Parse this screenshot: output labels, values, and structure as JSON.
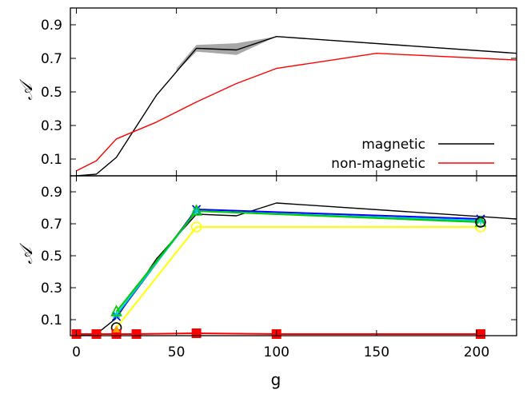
{
  "chart_data": [
    {
      "type": "line",
      "panel": "top",
      "xlabel": "",
      "ylabel": "𝒜",
      "xlim": [
        -3,
        220
      ],
      "ylim": [
        0,
        1
      ],
      "yticks": [
        0.1,
        0.3,
        0.5,
        0.7,
        0.9
      ],
      "legend": "bottom-right",
      "series": [
        {
          "name": "magnetic",
          "color": "#000000",
          "x": [
            0,
            10,
            20,
            40,
            60,
            80,
            100,
            220
          ],
          "y": [
            0.0,
            0.01,
            0.11,
            0.48,
            0.76,
            0.75,
            0.83,
            0.73
          ],
          "band": {
            "color": "#999999",
            "x": [
              50,
              60,
              80,
              100
            ],
            "lower": [
              0.62,
              0.74,
              0.72,
              0.83
            ],
            "upper": [
              0.64,
              0.78,
              0.79,
              0.83
            ]
          }
        },
        {
          "name": "non-magnetic",
          "color": "#ff0000",
          "x": [
            0,
            10,
            20,
            40,
            60,
            80,
            100,
            150,
            220
          ],
          "y": [
            0.03,
            0.09,
            0.22,
            0.32,
            0.44,
            0.55,
            0.64,
            0.73,
            0.69
          ]
        }
      ]
    },
    {
      "type": "line",
      "panel": "bottom",
      "xlabel": "g",
      "ylabel": "𝒜",
      "xlim": [
        -3,
        220
      ],
      "ylim": [
        0,
        1
      ],
      "xticks": [
        0,
        50,
        100,
        150,
        200
      ],
      "yticks": [
        0.1,
        0.3,
        0.5,
        0.7,
        0.9
      ],
      "series": [
        {
          "name": "magnetic-reference",
          "color": "#000000",
          "x": [
            0,
            10,
            20,
            40,
            60,
            80,
            100,
            220
          ],
          "y": [
            0.0,
            0.01,
            0.11,
            0.48,
            0.76,
            0.75,
            0.83,
            0.73
          ]
        },
        {
          "name": "yellow-circles",
          "color": "#ffff00",
          "marker": "circle",
          "x": [
            20,
            60,
            202
          ],
          "y": [
            0.05,
            0.68,
            0.68
          ]
        },
        {
          "name": "blue-crosses",
          "color": "#0000ff",
          "marker": "x",
          "x": [
            20,
            60,
            202
          ],
          "y": [
            0.12,
            0.79,
            0.73
          ]
        },
        {
          "name": "cyan-stars",
          "color": "#00cccc",
          "marker": "star",
          "x": [
            20,
            60,
            202
          ],
          "y": [
            0.13,
            0.78,
            0.72
          ]
        },
        {
          "name": "green-triangles",
          "color": "#00cc00",
          "marker": "triangle",
          "x": [
            20,
            60,
            202
          ],
          "y": [
            0.15,
            0.78,
            0.71
          ]
        },
        {
          "name": "black-circles",
          "color": "#000000",
          "marker": "circle",
          "x": [
            20,
            202
          ],
          "y": [
            0.05,
            0.71
          ]
        },
        {
          "name": "red-squares",
          "color": "#ff0000",
          "marker": "square",
          "x": [
            0,
            10,
            20,
            30,
            60,
            100,
            202
          ],
          "y": [
            0.01,
            0.01,
            0.01,
            0.01,
            0.015,
            0.01,
            0.01
          ]
        },
        {
          "name": "orange-triangles",
          "color": "#ff9900",
          "marker": "triangle-filled",
          "x": [
            20
          ],
          "y": [
            0.04
          ]
        }
      ]
    }
  ]
}
